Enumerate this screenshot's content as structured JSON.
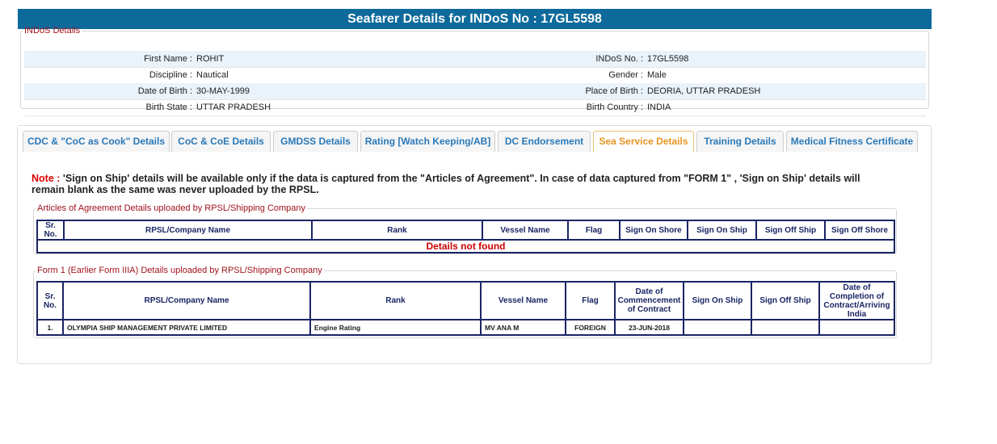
{
  "header": {
    "title": "Seafarer Details for INDoS No : 17GL5598"
  },
  "indos": {
    "legend": "INDoS Details",
    "rows": [
      [
        "First Name :",
        "ROHIT",
        "INDoS No. :",
        "17GL5598"
      ],
      [
        "Discipline :",
        "Nautical",
        "Gender :",
        "Male"
      ],
      [
        "Date of Birth :",
        "30-MAY-1999",
        "Place of Birth :",
        "DEORIA, UTTAR PRADESH"
      ],
      [
        "Birth State :",
        "UTTAR PRADESH",
        "Birth Country :",
        "INDIA"
      ]
    ]
  },
  "tabs": [
    "CDC & \"CoC as Cook\" Details",
    "CoC & CoE Details",
    "GMDSS Details",
    "Rating [Watch Keeping/AB]",
    "DC Endorsement",
    "Sea Service Details",
    "Training Details",
    "Medical Fitness Certificate"
  ],
  "note": {
    "label": "Note :",
    "text": "'Sign on Ship' details will be available only if the data is captured from the \"Articles of Agreement\". In case of data captured from \"FORM 1\" , 'Sign on Ship' details will remain blank as the same was never uploaded by the RPSL."
  },
  "aoa": {
    "legend": "Articles of Agreement Details uploaded by RPSL/Shipping Company",
    "headers": [
      "Sr. No.",
      "RPSL/Company Name",
      "Rank",
      "Vessel Name",
      "Flag",
      "Sign On Shore",
      "Sign On Ship",
      "Sign Off Ship",
      "Sign Off Shore"
    ],
    "empty": "Details not found"
  },
  "form1": {
    "legend": "Form 1 (Earlier Form IIIA) Details uploaded by RPSL/Shipping Company",
    "headers": [
      "Sr. No.",
      "RPSL/Company Name",
      "Rank",
      "Vessel Name",
      "Flag",
      "Date of Commencement of Contract",
      "Sign On Ship",
      "Sign Off Ship",
      "Date of Completion of Contract/Arriving India"
    ],
    "rows": [
      [
        "1.",
        "OLYMPIA SHIP MANAGEMENT PRIVATE LIMITED",
        "Engine Rating",
        "MV ANA M",
        "FOREIGN",
        "23-JUN-2018",
        "",
        "",
        ""
      ]
    ]
  }
}
